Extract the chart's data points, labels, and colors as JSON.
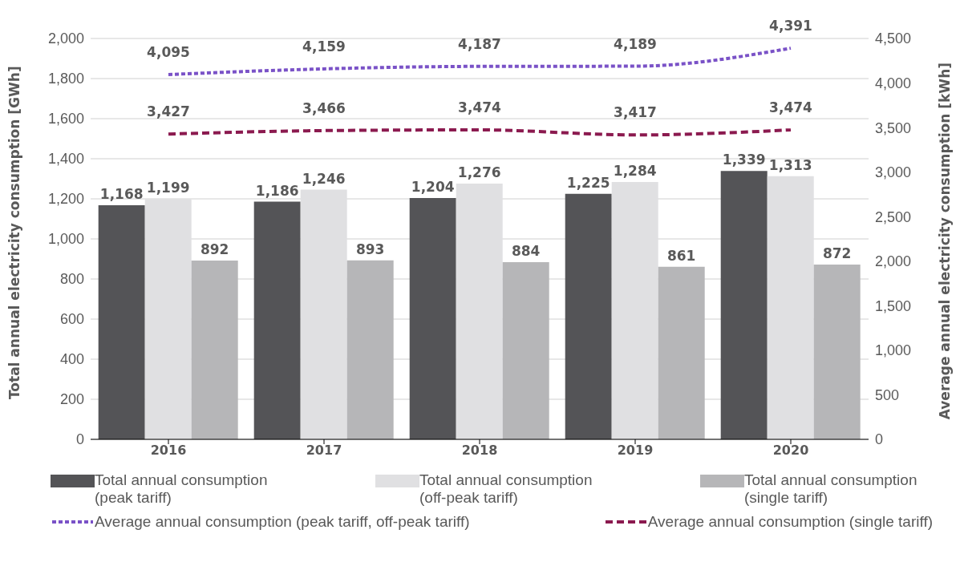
{
  "chart_data": {
    "type": "bar",
    "categories": [
      "2016",
      "2017",
      "2018",
      "2019",
      "2020"
    ],
    "ylabel": "Total annual electricity consumption [GWh]",
    "y2label": "Average annual electricity consumption [kWh]",
    "ylim": [
      0,
      2000
    ],
    "yticks": [
      {
        "value": 0,
        "label": "0"
      },
      {
        "value": 200,
        "label": "200"
      },
      {
        "value": 400,
        "label": "400"
      },
      {
        "value": 600,
        "label": "600"
      },
      {
        "value": 800,
        "label": "800"
      },
      {
        "value": 1000,
        "label": "1,000"
      },
      {
        "value": 1200,
        "label": "1,200"
      },
      {
        "value": 1400,
        "label": "1,400"
      },
      {
        "value": 1600,
        "label": "1,600"
      },
      {
        "value": 1800,
        "label": "1,800"
      },
      {
        "value": 2000,
        "label": "2,000"
      }
    ],
    "y2lim": [
      0,
      4500
    ],
    "y2ticks": [
      {
        "value": 0,
        "label": "0"
      },
      {
        "value": 500,
        "label": "500"
      },
      {
        "value": 1000,
        "label": "1,000"
      },
      {
        "value": 1500,
        "label": "1,500"
      },
      {
        "value": 2000,
        "label": "2,000"
      },
      {
        "value": 2500,
        "label": "2,500"
      },
      {
        "value": 3000,
        "label": "3,000"
      },
      {
        "value": 3500,
        "label": "3,500"
      },
      {
        "value": 4000,
        "label": "4,000"
      },
      {
        "value": 4500,
        "label": "4,500"
      }
    ],
    "series": [
      {
        "name": "Total annual consumption (peak tariff)",
        "color": "#545457",
        "values": [
          1168,
          1186,
          1204,
          1225,
          1339
        ],
        "value_labels": [
          "1,168",
          "1,186",
          "1,204",
          "1,225",
          "1,339"
        ]
      },
      {
        "name": "Total annual consumption (off-peak tariff)",
        "color": "#e0e0e2",
        "values": [
          1199,
          1246,
          1276,
          1284,
          1313
        ],
        "value_labels": [
          "1,199",
          "1,246",
          "1,276",
          "1,284",
          "1,313"
        ]
      },
      {
        "name": "Total annual consumption (single tariff)",
        "color": "#b6b6b8",
        "values": [
          892,
          893,
          884,
          861,
          872
        ],
        "value_labels": [
          "892",
          "893",
          "884",
          "861",
          "872"
        ]
      },
      {
        "name": "Average annual consumption (peak tariff, off-peak tariff)",
        "type": "line",
        "axis": "y2",
        "line_style": "dotted",
        "color": "#7a52c7",
        "values": [
          4095,
          4159,
          4187,
          4189,
          4391
        ],
        "value_labels": [
          "4,095",
          "4,159",
          "4,187",
          "4,189",
          "4,391"
        ]
      },
      {
        "name": "Average annual consumption (single tariff)",
        "type": "line",
        "axis": "y2",
        "line_style": "dashed",
        "color": "#8b1a4f",
        "values": [
          3427,
          3466,
          3474,
          3417,
          3474
        ],
        "value_labels": [
          "3,427",
          "3,466",
          "3,474",
          "3,417",
          "3,474"
        ]
      }
    ],
    "grid": "y",
    "legend": "bottom",
    "marker": "none"
  }
}
